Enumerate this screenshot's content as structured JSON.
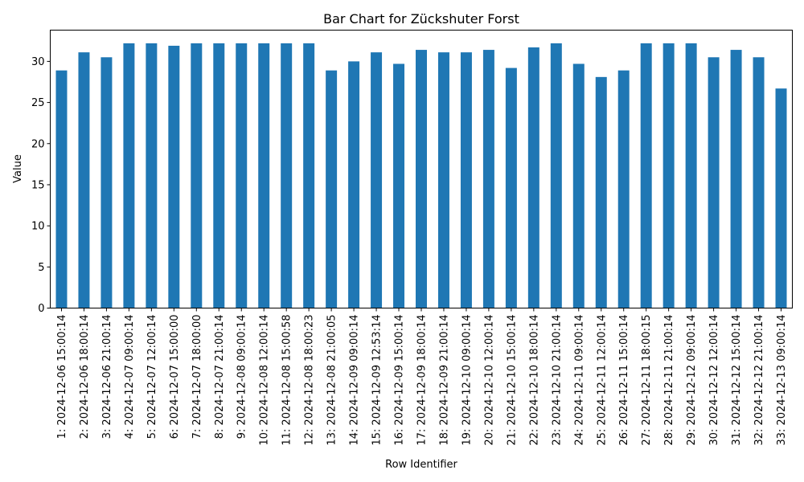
{
  "chart_data": {
    "type": "bar",
    "title": "Bar Chart for Zückshuter Forst",
    "xlabel": "Row Identifier",
    "ylabel": "Value",
    "ylim": [
      0,
      33.8
    ],
    "yticks": [
      0,
      5,
      10,
      15,
      20,
      25,
      30
    ],
    "bar_color": "#1f77b4",
    "grid": false,
    "legend": "none",
    "categories": [
      "1: 2024-12-06 15:00:14",
      "2: 2024-12-06 18:00:14",
      "3: 2024-12-06 21:00:14",
      "4: 2024-12-07 09:00:14",
      "5: 2024-12-07 12:00:14",
      "6: 2024-12-07 15:00:00",
      "7: 2024-12-07 18:00:00",
      "8: 2024-12-07 21:00:14",
      "9: 2024-12-08 09:00:14",
      "10: 2024-12-08 12:00:14",
      "11: 2024-12-08 15:00:58",
      "12: 2024-12-08 18:00:23",
      "13: 2024-12-08 21:00:05",
      "14: 2024-12-09 09:00:14",
      "15: 2024-12-09 12:53:14",
      "16: 2024-12-09 15:00:14",
      "17: 2024-12-09 18:00:14",
      "18: 2024-12-09 21:00:14",
      "19: 2024-12-10 09:00:14",
      "20: 2024-12-10 12:00:14",
      "21: 2024-12-10 15:00:14",
      "22: 2024-12-10 18:00:14",
      "23: 2024-12-10 21:00:14",
      "24: 2024-12-11 09:00:14",
      "25: 2024-12-11 12:00:14",
      "26: 2024-12-11 15:00:14",
      "27: 2024-12-11 18:00:15",
      "28: 2024-12-11 21:00:14",
      "29: 2024-12-12 09:00:14",
      "30: 2024-12-12 12:00:14",
      "31: 2024-12-12 15:00:14",
      "32: 2024-12-12 21:00:14",
      "33: 2024-12-13 09:00:14"
    ],
    "values": [
      28.9,
      31.1,
      30.5,
      32.2,
      32.2,
      31.9,
      32.2,
      32.2,
      32.2,
      32.2,
      32.2,
      32.2,
      28.9,
      30.0,
      31.1,
      29.7,
      31.4,
      31.1,
      31.1,
      31.4,
      29.2,
      31.7,
      32.2,
      29.7,
      28.1,
      28.9,
      32.2,
      32.2,
      32.2,
      30.5,
      31.4,
      30.5,
      26.7
    ]
  }
}
